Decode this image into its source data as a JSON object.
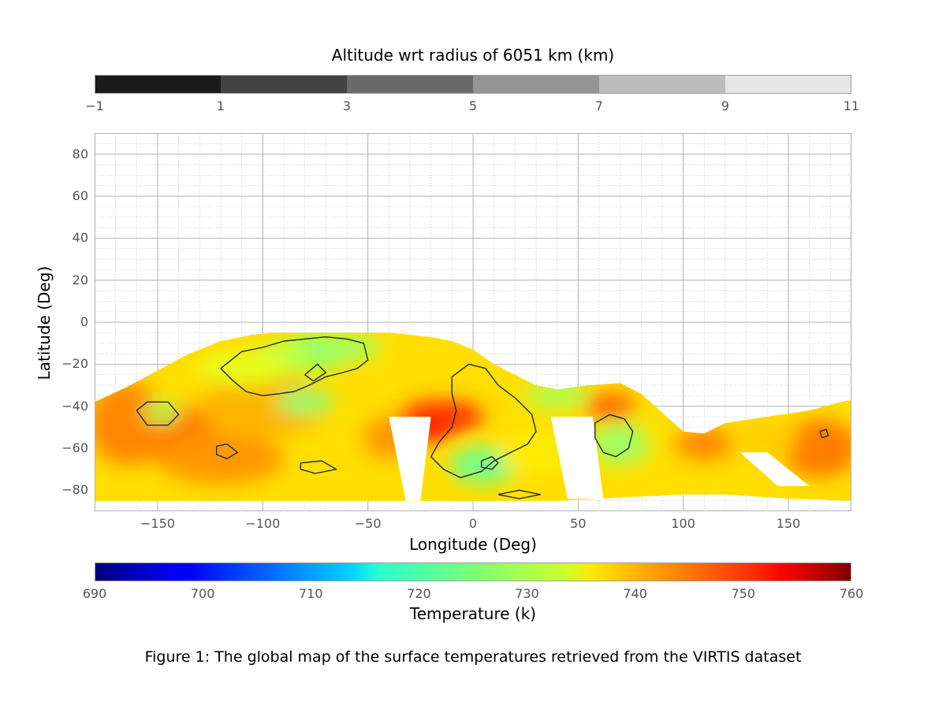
{
  "figure": {
    "caption": "Figure 1: The global map of the surface temperatures retrieved from the VIRTIS dataset"
  },
  "altitude_colorbar": {
    "label": "Altitude wrt radius of 6051 km (km)",
    "ticks": [
      "−1",
      "1",
      "3",
      "5",
      "7",
      "9",
      "11"
    ],
    "levels": [
      -1,
      1,
      3,
      5,
      7,
      9,
      11
    ],
    "colors": [
      "#1a1a1a",
      "#434343",
      "#6a6a6a",
      "#959595",
      "#bcbcbc",
      "#e6e6e6"
    ]
  },
  "temperature_colorbar": {
    "label": "Temperature (k)",
    "ticks": [
      "690",
      "700",
      "710",
      "720",
      "730",
      "740",
      "750",
      "760"
    ],
    "range": [
      690,
      760
    ],
    "colormap": "jet"
  },
  "chart_data": {
    "type": "heatmap",
    "xlabel": "Longitude (Deg)",
    "ylabel": "Latitude (Deg)",
    "xlim": [
      -180,
      180
    ],
    "ylim": [
      -90,
      90
    ],
    "xticks": [
      "−150",
      "−100",
      "−50",
      "0",
      "50",
      "100",
      "150"
    ],
    "xtick_values": [
      -150,
      -100,
      -50,
      0,
      50,
      100,
      150
    ],
    "yticks": [
      "80",
      "60",
      "40",
      "20",
      "0",
      "−20",
      "−40",
      "−60",
      "−80"
    ],
    "ytick_values": [
      80,
      60,
      40,
      20,
      0,
      -20,
      -40,
      -60,
      -80
    ],
    "grid": true,
    "coverage_top_edge": [
      [
        -180,
        -38
      ],
      [
        -165,
        -31
      ],
      [
        -150,
        -23
      ],
      [
        -135,
        -15
      ],
      [
        -120,
        -9
      ],
      [
        -105,
        -6
      ],
      [
        -95,
        -5
      ],
      [
        -80,
        -5
      ],
      [
        -60,
        -5
      ],
      [
        -40,
        -5
      ],
      [
        -20,
        -7
      ],
      [
        -10,
        -9
      ],
      [
        0,
        -13
      ],
      [
        10,
        -20
      ],
      [
        20,
        -25
      ],
      [
        30,
        -30
      ],
      [
        40,
        -32
      ],
      [
        55,
        -30
      ],
      [
        70,
        -29
      ],
      [
        80,
        -34
      ],
      [
        90,
        -43
      ],
      [
        100,
        -52
      ],
      [
        110,
        -53
      ],
      [
        120,
        -48
      ],
      [
        140,
        -45
      ],
      [
        160,
        -42
      ],
      [
        175,
        -38
      ],
      [
        180,
        -37
      ]
    ],
    "coverage_bottom_edge": [
      [
        180,
        -85
      ],
      [
        150,
        -84
      ],
      [
        120,
        -82
      ],
      [
        100,
        -82
      ],
      [
        80,
        -83
      ],
      [
        60,
        -84
      ],
      [
        40,
        -85
      ],
      [
        20,
        -85
      ],
      [
        0,
        -85
      ],
      [
        -20,
        -85
      ],
      [
        -50,
        -85
      ],
      [
        -80,
        -85
      ],
      [
        -110,
        -85
      ],
      [
        -140,
        -85
      ],
      [
        -165,
        -85
      ],
      [
        -180,
        -85
      ]
    ],
    "temperature_blobs": [
      {
        "lon": -150,
        "lat": -52,
        "rx": 28,
        "ry": 14,
        "temp": 743
      },
      {
        "lon": -120,
        "lat": -65,
        "rx": 30,
        "ry": 12,
        "temp": 741
      },
      {
        "lon": -165,
        "lat": -48,
        "rx": 18,
        "ry": 20,
        "temp": 742
      },
      {
        "lon": -100,
        "lat": -40,
        "rx": 30,
        "ry": 15,
        "temp": 739
      },
      {
        "lon": -75,
        "lat": -14,
        "rx": 16,
        "ry": 9,
        "temp": 726
      },
      {
        "lon": -90,
        "lat": -17,
        "rx": 14,
        "ry": 8,
        "temp": 729
      },
      {
        "lon": -58,
        "lat": -12,
        "rx": 14,
        "ry": 6,
        "temp": 727
      },
      {
        "lon": -80,
        "lat": -38,
        "rx": 14,
        "ry": 6,
        "temp": 726
      },
      {
        "lon": -148,
        "lat": -43,
        "rx": 9,
        "ry": 5,
        "temp": 728
      },
      {
        "lon": -110,
        "lat": -22,
        "rx": 22,
        "ry": 8,
        "temp": 732
      },
      {
        "lon": -15,
        "lat": -45,
        "rx": 20,
        "ry": 8,
        "temp": 748
      },
      {
        "lon": -20,
        "lat": -52,
        "rx": 10,
        "ry": 5,
        "temp": 750
      },
      {
        "lon": 5,
        "lat": -68,
        "rx": 16,
        "ry": 9,
        "temp": 724
      },
      {
        "lon": 40,
        "lat": -35,
        "rx": 16,
        "ry": 6,
        "temp": 728
      },
      {
        "lon": 70,
        "lat": -58,
        "rx": 14,
        "ry": 10,
        "temp": 727
      },
      {
        "lon": 65,
        "lat": -40,
        "rx": 12,
        "ry": 7,
        "temp": 744
      },
      {
        "lon": 110,
        "lat": -58,
        "rx": 14,
        "ry": 8,
        "temp": 742
      },
      {
        "lon": 165,
        "lat": -60,
        "rx": 18,
        "ry": 14,
        "temp": 743
      },
      {
        "lon": 140,
        "lat": -55,
        "rx": 14,
        "ry": 10,
        "temp": 737
      },
      {
        "lon": 30,
        "lat": -62,
        "rx": 18,
        "ry": 10,
        "temp": 735
      },
      {
        "lon": -40,
        "lat": -55,
        "rx": 12,
        "ry": 10,
        "temp": 741
      }
    ],
    "base_temperature": 736,
    "gaps": [
      [
        [
          -40,
          -45
        ],
        [
          -20,
          -45
        ],
        [
          -25,
          -85
        ],
        [
          -32,
          -85
        ]
      ],
      [
        [
          37,
          -45
        ],
        [
          57,
          -45
        ],
        [
          62,
          -84
        ],
        [
          45,
          -84
        ]
      ],
      [
        [
          127,
          -62
        ],
        [
          140,
          -62
        ],
        [
          160,
          -78
        ],
        [
          145,
          -78
        ]
      ]
    ],
    "contours": [
      [
        [
          -160,
          -42
        ],
        [
          -155,
          -38
        ],
        [
          -145,
          -38
        ],
        [
          -140,
          -44
        ],
        [
          -145,
          -49
        ],
        [
          -155,
          -49
        ],
        [
          -160,
          -42
        ]
      ],
      [
        [
          -122,
          -59
        ],
        [
          -117,
          -58
        ],
        [
          -112,
          -62
        ],
        [
          -117,
          -65
        ],
        [
          -122,
          -63
        ],
        [
          -122,
          -59
        ]
      ],
      [
        [
          -82,
          -67
        ],
        [
          -72,
          -66
        ],
        [
          -65,
          -70
        ],
        [
          -75,
          -72
        ],
        [
          -82,
          -70
        ],
        [
          -82,
          -67
        ]
      ],
      [
        [
          -120,
          -22
        ],
        [
          -110,
          -14
        ],
        [
          -100,
          -12
        ],
        [
          -90,
          -9
        ],
        [
          -80,
          -8
        ],
        [
          -70,
          -7
        ],
        [
          -60,
          -8
        ],
        [
          -52,
          -10
        ],
        [
          -50,
          -18
        ],
        [
          -55,
          -22
        ],
        [
          -62,
          -24
        ],
        [
          -70,
          -26
        ],
        [
          -78,
          -30
        ],
        [
          -85,
          -33
        ],
        [
          -92,
          -34
        ],
        [
          -100,
          -35
        ],
        [
          -108,
          -33
        ],
        [
          -114,
          -28
        ],
        [
          -120,
          -22
        ]
      ],
      [
        [
          -10,
          -26
        ],
        [
          -2,
          -20
        ],
        [
          6,
          -22
        ],
        [
          12,
          -30
        ],
        [
          20,
          -36
        ],
        [
          28,
          -44
        ],
        [
          30,
          -52
        ],
        [
          26,
          -58
        ],
        [
          18,
          -62
        ],
        [
          10,
          -66
        ],
        [
          4,
          -71
        ],
        [
          -6,
          -74
        ],
        [
          -14,
          -70
        ],
        [
          -20,
          -64
        ],
        [
          -16,
          -57
        ],
        [
          -10,
          -50
        ],
        [
          -8,
          -42
        ],
        [
          -10,
          -34
        ],
        [
          -10,
          -26
        ]
      ],
      [
        [
          4,
          -66
        ],
        [
          9,
          -64
        ],
        [
          12,
          -67
        ],
        [
          9,
          -70
        ],
        [
          4,
          -69
        ],
        [
          4,
          -66
        ]
      ],
      [
        [
          58,
          -48
        ],
        [
          65,
          -44
        ],
        [
          72,
          -46
        ],
        [
          76,
          -52
        ],
        [
          74,
          -60
        ],
        [
          68,
          -64
        ],
        [
          62,
          -62
        ],
        [
          58,
          -55
        ],
        [
          58,
          -48
        ]
      ],
      [
        [
          165,
          -52
        ],
        [
          168,
          -51
        ],
        [
          169,
          -54
        ],
        [
          166,
          -55
        ],
        [
          165,
          -52
        ]
      ],
      [
        [
          12,
          -82
        ],
        [
          22,
          -80
        ],
        [
          32,
          -82
        ],
        [
          22,
          -84
        ],
        [
          12,
          -82
        ]
      ],
      [
        [
          -80,
          -25
        ],
        [
          -74,
          -20
        ],
        [
          -70,
          -24
        ],
        [
          -76,
          -28
        ],
        [
          -80,
          -25
        ]
      ]
    ]
  }
}
